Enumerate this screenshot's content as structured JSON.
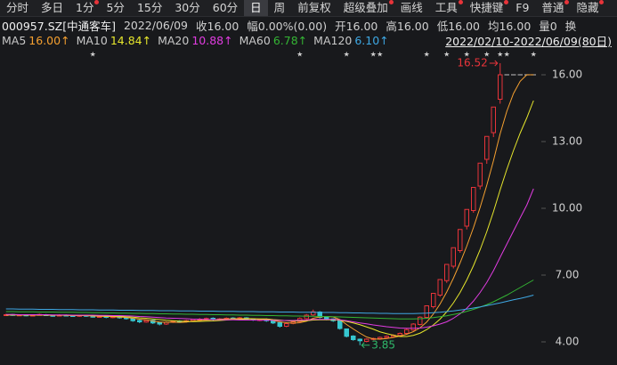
{
  "toolbar": {
    "items": [
      {
        "label": "分时"
      },
      {
        "label": "多日"
      },
      {
        "label": "1分",
        "badge": true
      },
      {
        "label": "5分"
      },
      {
        "label": "15分"
      },
      {
        "label": "30分"
      },
      {
        "label": "60分"
      },
      {
        "label": "日"
      },
      {
        "label": "周"
      },
      {
        "label": "前复权"
      },
      {
        "label": "超级叠加",
        "badge": true
      },
      {
        "label": "画线"
      },
      {
        "label": "工具",
        "badge": true
      },
      {
        "label": "快捷键",
        "badge": true
      },
      {
        "label": "F9"
      },
      {
        "label": "普通",
        "badge": true
      },
      {
        "label": "隐藏",
        "badge": true
      }
    ],
    "selected": "日"
  },
  "info": [
    "000957.SZ[中通客车]",
    "2022/06/09",
    "收16.00",
    "幅0.00%(0.00)",
    "开16.00",
    "高16.00",
    "低16.00",
    "均16.00",
    "量0",
    "换"
  ],
  "chart_data": {
    "type": "candlestick",
    "date_range": "2022/02/10-2022/06/09(80日)",
    "up_color": "#e8343a",
    "down_color": "#36c6cf",
    "flat_color": "#a8a8a8",
    "open": [
      5.2,
      5.23,
      5.19,
      5.21,
      5.17,
      5.2,
      5.22,
      5.19,
      5.16,
      5.2,
      5.18,
      5.15,
      5.19,
      5.15,
      5.11,
      5.14,
      5.09,
      5.12,
      5.08,
      5.04,
      4.96,
      4.89,
      4.97,
      4.86,
      4.8,
      4.88,
      4.93,
      4.9,
      4.94,
      5.0,
      5.01,
      5.06,
      4.99,
      5.02,
      5.07,
      5.03,
      5.08,
      5.03,
      4.97,
      5.01,
      4.96,
      4.86,
      4.7,
      4.83,
      4.91,
      5.04,
      5.21,
      5.34,
      5.11,
      5.03,
      4.95,
      4.58,
      4.26,
      4.12,
      4.02,
      4.11,
      4.14,
      4.19,
      4.24,
      4.29,
      4.38,
      4.53,
      4.78,
      5.1,
      5.58,
      6.1,
      6.75,
      7.4,
      8.1,
      9.2,
      9.9,
      11.0,
      12.2,
      13.4,
      14.9,
      16,
      16,
      16,
      16,
      16
    ],
    "high": [
      5.26,
      5.26,
      5.24,
      5.24,
      5.23,
      5.27,
      5.25,
      5.22,
      5.24,
      5.23,
      5.21,
      5.22,
      5.22,
      5.18,
      5.17,
      5.17,
      5.16,
      5.15,
      5.11,
      5.07,
      5.0,
      5.0,
      5.0,
      4.9,
      4.92,
      4.96,
      4.97,
      4.99,
      5.04,
      5.07,
      5.09,
      5.1,
      5.07,
      5.1,
      5.11,
      5.12,
      5.11,
      5.06,
      5.04,
      5.05,
      4.99,
      4.89,
      4.86,
      4.95,
      5.1,
      5.25,
      5.45,
      5.38,
      5.15,
      5.06,
      4.98,
      4.6,
      4.3,
      4.15,
      4.16,
      4.19,
      4.24,
      4.29,
      4.34,
      4.42,
      4.6,
      4.84,
      5.15,
      5.62,
      6.18,
      6.8,
      7.48,
      8.23,
      9.05,
      9.95,
      10.94,
      12.03,
      13.23,
      14.55,
      16.52,
      16,
      16,
      16,
      16,
      16
    ],
    "low": [
      5.16,
      5.17,
      5.16,
      5.15,
      5.14,
      5.18,
      5.16,
      5.13,
      5.14,
      5.15,
      5.13,
      5.12,
      5.12,
      5.09,
      5.08,
      5.06,
      5.06,
      5.04,
      5.0,
      4.9,
      4.84,
      4.86,
      4.8,
      4.74,
      4.76,
      4.85,
      4.86,
      4.87,
      4.91,
      4.97,
      4.98,
      4.96,
      4.95,
      4.99,
      5.0,
      5.0,
      4.98,
      4.94,
      4.93,
      4.9,
      4.8,
      4.64,
      4.66,
      4.79,
      4.88,
      5.0,
      5.15,
      5.05,
      4.97,
      4.9,
      4.55,
      4.2,
      4.05,
      3.85,
      3.98,
      4.07,
      4.1,
      4.15,
      4.2,
      4.25,
      4.33,
      4.5,
      4.74,
      5.05,
      5.5,
      6.02,
      6.65,
      7.3,
      8.0,
      9.05,
      9.8,
      10.85,
      12.0,
      13.2,
      14.7,
      16,
      16,
      16,
      16,
      16
    ],
    "close": [
      5.22,
      5.2,
      5.21,
      5.18,
      5.2,
      5.23,
      5.19,
      5.17,
      5.2,
      5.18,
      5.16,
      5.19,
      5.15,
      5.12,
      5.14,
      5.1,
      5.13,
      5.08,
      5.05,
      4.95,
      4.9,
      4.96,
      4.85,
      4.8,
      4.88,
      4.92,
      4.9,
      4.95,
      5.0,
      5.02,
      5.05,
      5.0,
      5.03,
      5.06,
      5.04,
      5.08,
      5.02,
      4.98,
      5.0,
      4.95,
      4.85,
      4.7,
      4.82,
      4.9,
      5.05,
      5.2,
      5.35,
      5.1,
      5.02,
      4.95,
      4.6,
      4.25,
      4.1,
      4.05,
      4.12,
      4.15,
      4.2,
      4.25,
      4.3,
      4.38,
      4.55,
      4.8,
      5.11,
      5.62,
      6.18,
      6.8,
      7.48,
      8.23,
      9.05,
      9.95,
      10.94,
      12.03,
      13.23,
      14.55,
      16,
      16,
      16,
      16,
      16,
      16
    ],
    "series": [
      {
        "name": "MA5",
        "color": "#f5a030",
        "value_label": "16.00↑",
        "values": [
          5.21,
          5.21,
          5.21,
          5.2,
          5.2,
          5.2,
          5.2,
          5.19,
          5.2,
          5.19,
          5.18,
          5.18,
          5.18,
          5.16,
          5.15,
          5.14,
          5.13,
          5.11,
          5.1,
          5.06,
          5.02,
          4.99,
          4.94,
          4.89,
          4.88,
          4.88,
          4.87,
          4.89,
          4.93,
          4.96,
          4.98,
          5.0,
          5.02,
          5.03,
          5.04,
          5.04,
          5.05,
          5.04,
          5.02,
          5.01,
          4.96,
          4.9,
          4.86,
          4.84,
          4.86,
          4.93,
          5.06,
          5.12,
          5.14,
          5.12,
          5.0,
          4.78,
          4.58,
          4.39,
          4.22,
          4.13,
          4.12,
          4.15,
          4.2,
          4.26,
          4.34,
          4.46,
          4.63,
          4.89,
          5.25,
          5.7,
          6.24,
          6.86,
          7.55,
          8.3,
          9.13,
          10.04,
          11.04,
          12.14,
          13.35,
          14.36,
          15.16,
          15.71,
          16,
          16
        ]
      },
      {
        "name": "MA10",
        "color": "#e6e62c",
        "value_label": "14.84↑",
        "values": [
          5.21,
          5.21,
          5.21,
          5.21,
          5.21,
          5.21,
          5.21,
          5.2,
          5.2,
          5.2,
          5.19,
          5.19,
          5.19,
          5.18,
          5.17,
          5.16,
          5.16,
          5.15,
          5.13,
          5.11,
          5.08,
          5.06,
          5.03,
          5.0,
          4.97,
          4.95,
          4.93,
          4.92,
          4.91,
          4.92,
          4.93,
          4.94,
          4.96,
          4.98,
          5.0,
          5.01,
          5.03,
          5.03,
          5.03,
          5.03,
          5.0,
          4.98,
          4.95,
          4.93,
          4.94,
          4.95,
          4.98,
          4.99,
          4.99,
          4.99,
          4.97,
          4.92,
          4.85,
          4.77,
          4.67,
          4.57,
          4.45,
          4.37,
          4.3,
          4.24,
          4.24,
          4.29,
          4.39,
          4.55,
          4.76,
          5.02,
          5.35,
          5.75,
          6.22,
          6.78,
          7.42,
          8.14,
          8.95,
          9.85,
          10.83,
          11.75,
          12.6,
          13.38,
          14.07,
          14.84
        ]
      },
      {
        "name": "MA20",
        "color": "#e03ce0",
        "value_label": "10.88↑",
        "values": [
          5.23,
          5.23,
          5.22,
          5.22,
          5.22,
          5.22,
          5.22,
          5.21,
          5.21,
          5.21,
          5.2,
          5.2,
          5.2,
          5.2,
          5.19,
          5.19,
          5.18,
          5.18,
          5.17,
          5.16,
          5.14,
          5.13,
          5.11,
          5.09,
          5.07,
          5.06,
          5.05,
          5.04,
          5.02,
          5.02,
          5.01,
          5.0,
          5.0,
          4.99,
          4.99,
          4.98,
          4.98,
          4.98,
          4.97,
          4.98,
          4.97,
          4.96,
          4.96,
          4.96,
          4.97,
          4.98,
          5.01,
          5.01,
          5.01,
          5.01,
          4.99,
          4.95,
          4.9,
          4.85,
          4.81,
          4.76,
          4.72,
          4.68,
          4.65,
          4.62,
          4.61,
          4.61,
          4.62,
          4.66,
          4.72,
          4.8,
          4.9,
          5.06,
          5.26,
          5.51,
          5.83,
          6.22,
          6.67,
          7.2,
          7.8,
          8.39,
          8.98,
          9.57,
          10.15,
          10.88
        ]
      },
      {
        "name": "MA60",
        "color": "#34b434",
        "value_label": "6.78↑",
        "values": [
          5.36,
          5.36,
          5.35,
          5.35,
          5.35,
          5.34,
          5.34,
          5.34,
          5.33,
          5.33,
          5.33,
          5.32,
          5.32,
          5.31,
          5.31,
          5.3,
          5.3,
          5.29,
          5.29,
          5.28,
          5.28,
          5.27,
          5.27,
          5.26,
          5.26,
          5.25,
          5.25,
          5.24,
          5.24,
          5.23,
          5.23,
          5.22,
          5.22,
          5.21,
          5.21,
          5.2,
          5.2,
          5.19,
          5.19,
          5.18,
          5.18,
          5.17,
          5.17,
          5.16,
          5.16,
          5.15,
          5.15,
          5.14,
          5.14,
          5.13,
          5.12,
          5.11,
          5.1,
          5.09,
          5.08,
          5.07,
          5.06,
          5.05,
          5.04,
          5.03,
          5.03,
          5.03,
          5.04,
          5.06,
          5.09,
          5.13,
          5.17,
          5.23,
          5.29,
          5.37,
          5.46,
          5.56,
          5.67,
          5.8,
          5.95,
          6.1,
          6.27,
          6.44,
          6.61,
          6.78
        ]
      },
      {
        "name": "MA120",
        "color": "#3ea8e4",
        "value_label": "6.10↑",
        "values": [
          5.48,
          5.48,
          5.47,
          5.47,
          5.47,
          5.46,
          5.46,
          5.46,
          5.45,
          5.45,
          5.45,
          5.44,
          5.44,
          5.44,
          5.43,
          5.43,
          5.43,
          5.42,
          5.42,
          5.42,
          5.41,
          5.41,
          5.41,
          5.4,
          5.4,
          5.4,
          5.39,
          5.39,
          5.39,
          5.38,
          5.38,
          5.38,
          5.37,
          5.37,
          5.37,
          5.36,
          5.36,
          5.36,
          5.35,
          5.35,
          5.35,
          5.34,
          5.34,
          5.34,
          5.33,
          5.33,
          5.33,
          5.32,
          5.32,
          5.32,
          5.31,
          5.31,
          5.3,
          5.3,
          5.29,
          5.29,
          5.28,
          5.28,
          5.27,
          5.27,
          5.27,
          5.27,
          5.28,
          5.29,
          5.31,
          5.33,
          5.36,
          5.39,
          5.43,
          5.47,
          5.52,
          5.57,
          5.63,
          5.69,
          5.75,
          5.82,
          5.89,
          5.95,
          6.02,
          6.1
        ]
      }
    ],
    "ylim": [
      3.16,
      17.28
    ],
    "yticks": [
      {
        "value": 4,
        "label": "4.00"
      },
      {
        "value": 7,
        "label": "7.00"
      },
      {
        "value": 10,
        "label": "10.00"
      },
      {
        "value": 13,
        "label": "13.00"
      },
      {
        "value": 16,
        "label": "16.00"
      }
    ],
    "annotations": [
      {
        "kind": "high",
        "label": "16.52",
        "value": 16.52,
        "color": "#e8343a"
      },
      {
        "kind": "low",
        "label": "3.85",
        "value": 3.85,
        "color": "#2fb86a"
      }
    ],
    "event_marker": "★",
    "event_days": [
      13,
      44,
      51,
      55,
      56,
      63,
      66,
      69,
      72,
      74,
      75,
      79
    ]
  }
}
